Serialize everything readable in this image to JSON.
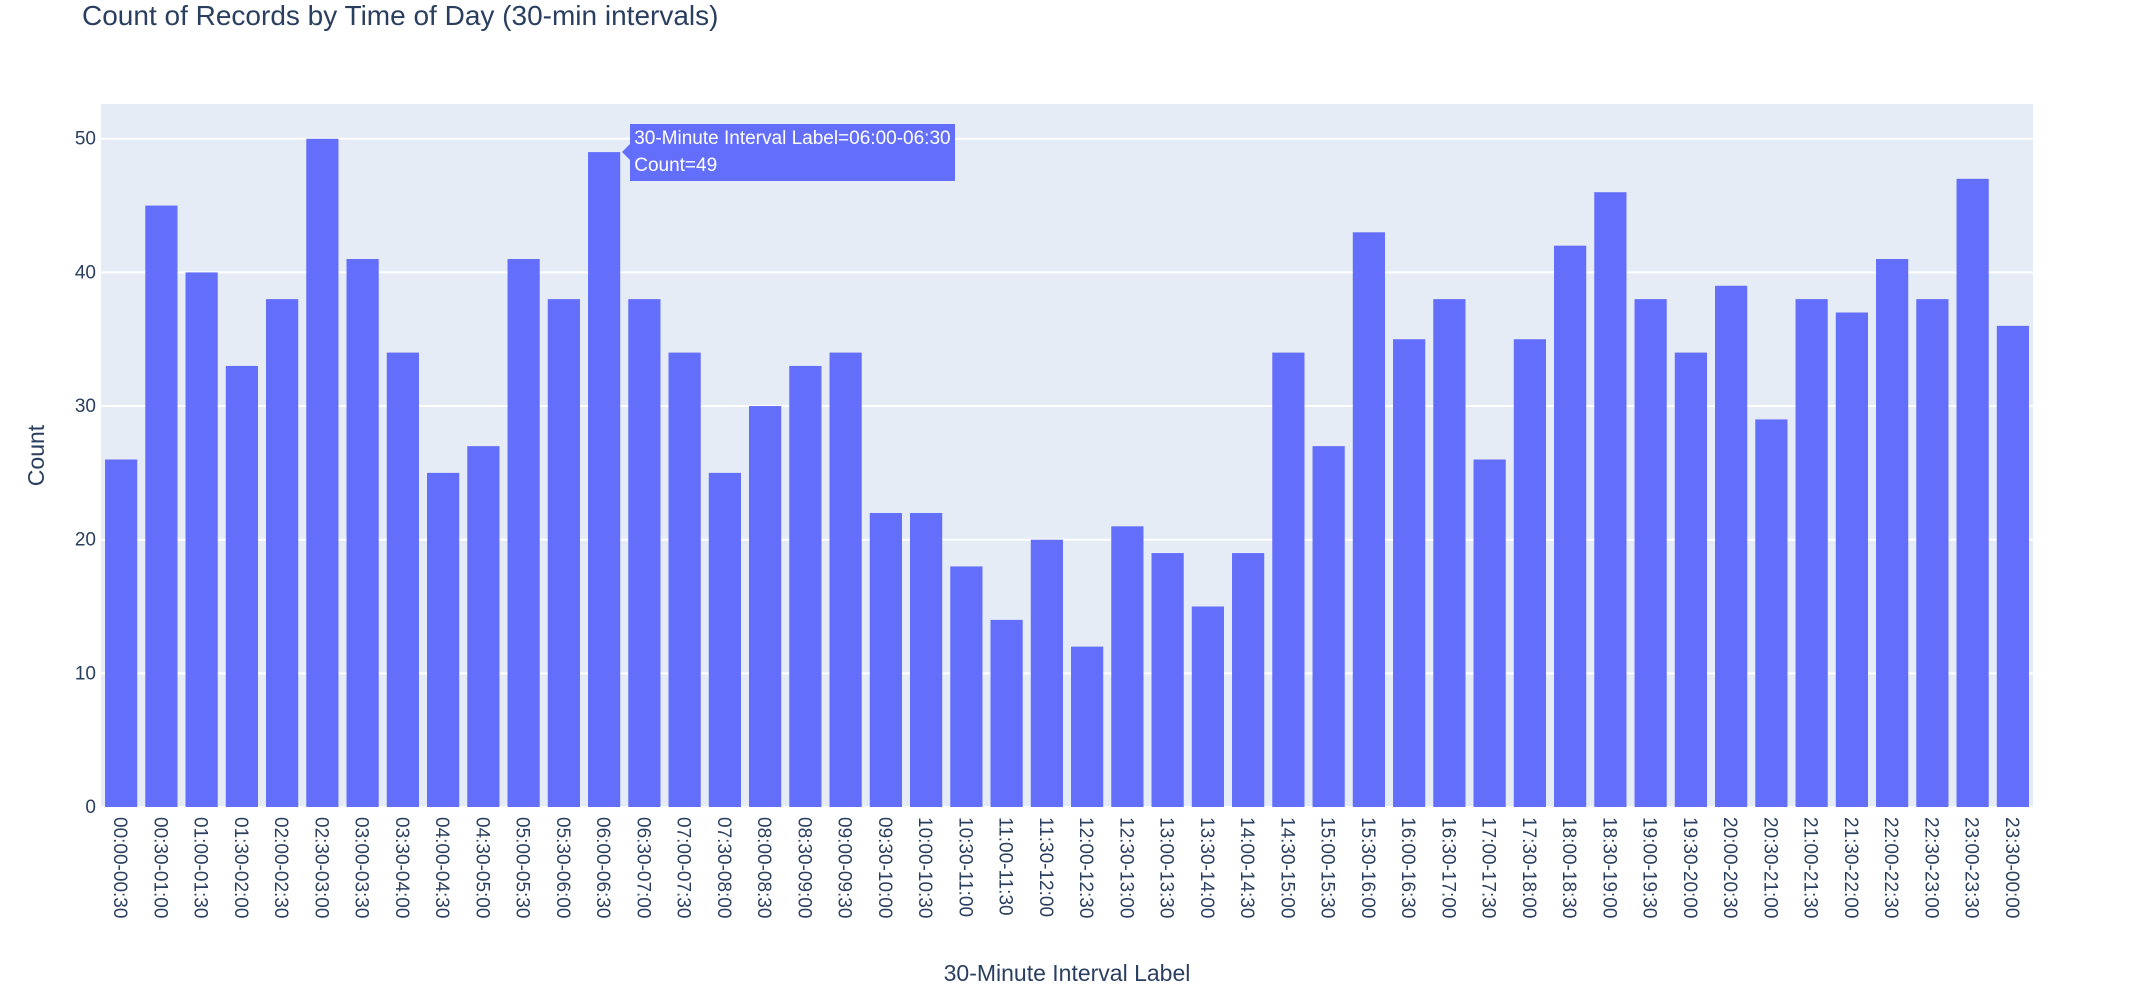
{
  "chart_data": {
    "type": "bar",
    "title": "Count of Records by Time of Day (30-min intervals)",
    "xlabel": "30-Minute Interval Label",
    "ylabel": "Count",
    "ylim": [
      0,
      52.6
    ],
    "yticks": [
      0,
      10,
      20,
      30,
      40,
      50
    ],
    "grid": true,
    "colors": {
      "bar": "#636efa",
      "plot_bg": "#e5ecf6",
      "grid": "#ffffff",
      "text": "#2a3f5f"
    },
    "categories": [
      "00:00-00:30",
      "00:30-01:00",
      "01:00-01:30",
      "01:30-02:00",
      "02:00-02:30",
      "02:30-03:00",
      "03:00-03:30",
      "03:30-04:00",
      "04:00-04:30",
      "04:30-05:00",
      "05:00-05:30",
      "05:30-06:00",
      "06:00-06:30",
      "06:30-07:00",
      "07:00-07:30",
      "07:30-08:00",
      "08:00-08:30",
      "08:30-09:00",
      "09:00-09:30",
      "09:30-10:00",
      "10:00-10:30",
      "10:30-11:00",
      "11:00-11:30",
      "11:30-12:00",
      "12:00-12:30",
      "12:30-13:00",
      "13:00-13:30",
      "13:30-14:00",
      "14:00-14:30",
      "14:30-15:00",
      "15:00-15:30",
      "15:30-16:00",
      "16:00-16:30",
      "16:30-17:00",
      "17:00-17:30",
      "17:30-18:00",
      "18:00-18:30",
      "18:30-19:00",
      "19:00-19:30",
      "19:30-20:00",
      "20:00-20:30",
      "20:30-21:00",
      "21:00-21:30",
      "21:30-22:00",
      "22:00-22:30",
      "22:30-23:00",
      "23:00-23:30",
      "23:30-00:00"
    ],
    "values": [
      26,
      45,
      40,
      33,
      38,
      50,
      41,
      34,
      25,
      27,
      41,
      38,
      49,
      38,
      34,
      25,
      30,
      33,
      34,
      22,
      22,
      18,
      14,
      20,
      12,
      21,
      19,
      15,
      19,
      34,
      27,
      43,
      35,
      38,
      26,
      35,
      42,
      46,
      38,
      34,
      39,
      29,
      38,
      37,
      41,
      38,
      47,
      36
    ],
    "tooltip": {
      "line1": "30-Minute Interval Label=06:00-06:30",
      "line2": "Count=49",
      "category": "06:00-06:30"
    }
  }
}
